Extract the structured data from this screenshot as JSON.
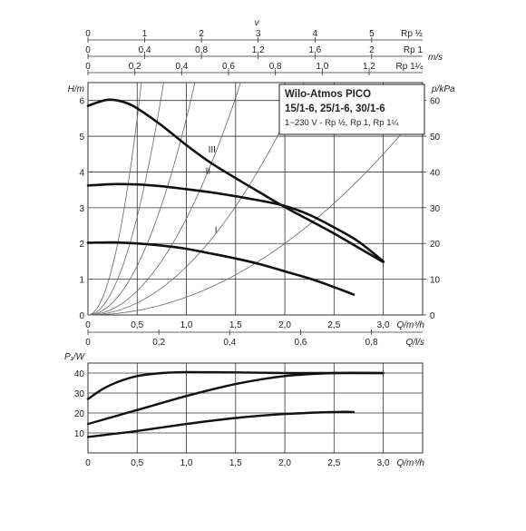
{
  "legend_box": {
    "line1": "Wilo-Atmos PICO",
    "line2": "15/1-6, 25/1-6, 30/1-6",
    "line3": "1~230 V - Rp ½, Rp 1, Rp 1¼"
  },
  "top_scales": [
    {
      "ticks": [
        "0",
        "1",
        "2",
        "3",
        "4",
        "5"
      ],
      "unit": "Rp ½",
      "center_label": "v"
    },
    {
      "ticks": [
        "0",
        "0,4",
        "0,8",
        "1,2",
        "1,6",
        "2"
      ],
      "unit": "Rp 1",
      "right_unit": "m/s"
    },
    {
      "ticks": [
        "0",
        "0,2",
        "0,4",
        "0,6",
        "0,8",
        "1,0",
        "1,2"
      ],
      "unit": "Rp 1¼"
    }
  ],
  "colors": {
    "curve": "#111111",
    "grid": "#333333",
    "system_curve": "#666666"
  },
  "chart_data": [
    {
      "type": "line",
      "title": "",
      "xlabel": "Q/m³/h",
      "ylabel": "H/m",
      "y2label": "p/kPa",
      "xlim": [
        0,
        3.4
      ],
      "ylim": [
        0,
        6.5
      ],
      "y2lim": [
        0,
        65
      ],
      "x_ticks": [
        "0",
        "0,5",
        "1,0",
        "1,5",
        "2,0",
        "2,5",
        "3,0"
      ],
      "y_ticks": [
        "0",
        "1",
        "2",
        "3",
        "4",
        "5",
        "6"
      ],
      "y2_ticks": [
        "0",
        "10",
        "20",
        "30",
        "40",
        "50",
        "60"
      ],
      "secondary_x": {
        "label": "Q/l/s",
        "ticks": [
          "0",
          "0,2",
          "0,4",
          "0,6",
          "0,8"
        ]
      },
      "grid": true,
      "series": [
        {
          "name": "I",
          "x": [
            0,
            0.25,
            0.5,
            0.75,
            1.0,
            1.25,
            1.5,
            1.75,
            2.0,
            2.25,
            2.5,
            2.7
          ],
          "y": [
            2.02,
            2.03,
            2.0,
            1.94,
            1.85,
            1.72,
            1.58,
            1.42,
            1.22,
            1.02,
            0.78,
            0.57
          ]
        },
        {
          "name": "II",
          "x": [
            0,
            0.25,
            0.5,
            0.75,
            1.0,
            1.25,
            1.5,
            1.75,
            2.0,
            2.25,
            2.5,
            2.75,
            3.0
          ],
          "y": [
            3.62,
            3.66,
            3.65,
            3.6,
            3.52,
            3.43,
            3.32,
            3.2,
            3.05,
            2.8,
            2.45,
            2.05,
            1.5
          ]
        },
        {
          "name": "III",
          "x": [
            0,
            0.1,
            0.2,
            0.3,
            0.4,
            0.5,
            0.75,
            1.0,
            1.25,
            1.5,
            1.75,
            2.0,
            2.25,
            2.5,
            2.75,
            3.0
          ],
          "y": [
            5.85,
            5.95,
            6.02,
            6.0,
            5.92,
            5.78,
            5.3,
            4.75,
            4.25,
            3.83,
            3.42,
            3.02,
            2.65,
            2.28,
            1.88,
            1.48
          ]
        }
      ],
      "system_curves": [
        0.5,
        1.35,
        2.7,
        5.5,
        11,
        22
      ]
    },
    {
      "type": "line",
      "title": "",
      "xlabel": "Q/m³/h",
      "ylabel": "P₁/W",
      "xlim": [
        0,
        3.4
      ],
      "ylim": [
        0,
        45
      ],
      "x_ticks": [
        "0",
        "0,5",
        "1,0",
        "1,5",
        "2,0",
        "2,5",
        "3,0"
      ],
      "y_ticks": [
        "10",
        "20",
        "30",
        "40"
      ],
      "grid": true,
      "series": [
        {
          "name": "I",
          "x": [
            0,
            0.5,
            1.0,
            1.5,
            2.0,
            2.5,
            2.7
          ],
          "y": [
            8,
            11,
            14.5,
            17.5,
            19.5,
            20.5,
            20.5
          ]
        },
        {
          "name": "II",
          "x": [
            0,
            0.5,
            1.0,
            1.5,
            2.0,
            2.5,
            3.0
          ],
          "y": [
            14.5,
            21.5,
            28.5,
            34.5,
            38.5,
            40,
            40
          ]
        },
        {
          "name": "III",
          "x": [
            0,
            0.15,
            0.3,
            0.5,
            0.75,
            1.0,
            1.5,
            2.0,
            2.5,
            3.0
          ],
          "y": [
            27,
            32,
            35.5,
            38.5,
            40,
            40.5,
            40.3,
            40,
            40,
            40
          ]
        }
      ]
    }
  ]
}
